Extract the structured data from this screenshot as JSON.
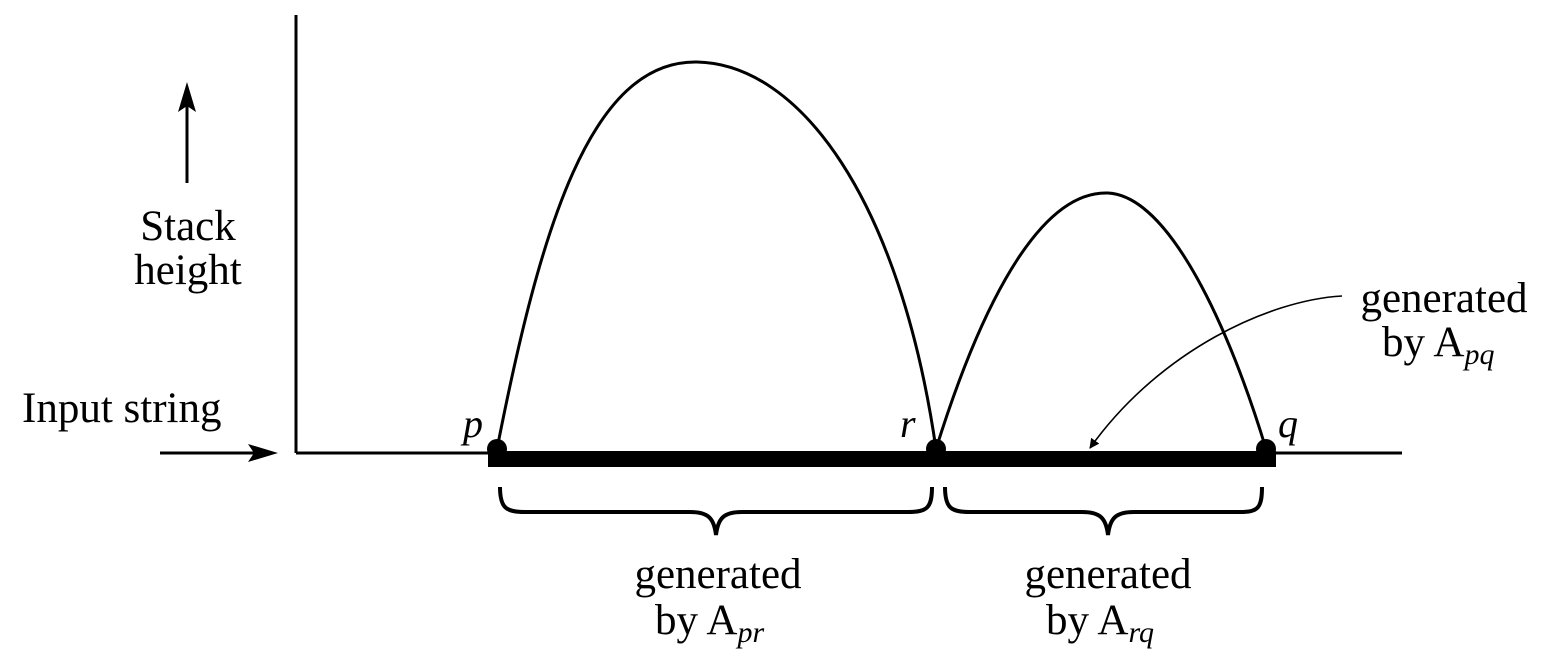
{
  "labels": {
    "stack_height_line1": "Stack",
    "stack_height_line2": "height",
    "input_string": "Input string",
    "point_p": "p",
    "point_r": "r",
    "point_q": "q",
    "generated": "generated",
    "by": "by A",
    "sub_pr": "pr",
    "sub_rq": "rq",
    "sub_pq": "pq"
  }
}
